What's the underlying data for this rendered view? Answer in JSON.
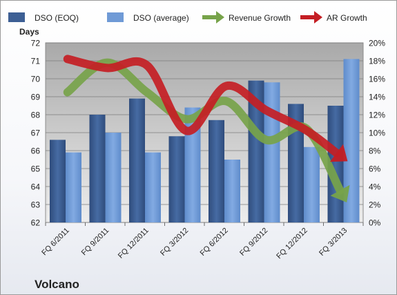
{
  "chart_data": {
    "type": "bar",
    "title": "Volcano",
    "ylabel": "Days",
    "categories": [
      "FQ 6/2011",
      "FQ 9/2011",
      "FQ 12/2011",
      "FQ 3/2012",
      "FQ 6/2012",
      "FQ 9/2012",
      "FQ 12/2012",
      "FQ 3/2013"
    ],
    "ylim": [
      62,
      72
    ],
    "yticks": [
      62,
      63,
      64,
      65,
      66,
      67,
      68,
      69,
      70,
      71,
      72
    ],
    "y2lim": [
      0,
      0.2
    ],
    "y2ticks": [
      "0%",
      "2%",
      "4%",
      "6%",
      "8%",
      "10%",
      "12%",
      "14%",
      "16%",
      "18%",
      "20%"
    ],
    "series": [
      {
        "name": "DSO (EOQ)",
        "type": "bar",
        "axis": "left",
        "color": "#3d5f94",
        "values": [
          66.6,
          68.0,
          68.9,
          66.8,
          67.7,
          69.9,
          68.6,
          68.5
        ]
      },
      {
        "name": "DSO (average)",
        "type": "bar",
        "axis": "left",
        "color": "#6f9ad6",
        "values": [
          65.9,
          67.0,
          65.9,
          68.4,
          65.5,
          69.8,
          66.2,
          71.1
        ]
      },
      {
        "name": "Revenue Growth",
        "type": "line",
        "axis": "right",
        "color": "#77a34a",
        "values": [
          0.145,
          0.178,
          0.145,
          0.115,
          0.135,
          0.092,
          0.105,
          0.025
        ]
      },
      {
        "name": "AR Growth",
        "type": "line",
        "axis": "right",
        "color": "#c41e24",
        "values": [
          0.182,
          0.172,
          0.175,
          0.102,
          0.152,
          0.125,
          0.103,
          0.07
        ]
      }
    ],
    "legend": "top",
    "grid": true
  }
}
